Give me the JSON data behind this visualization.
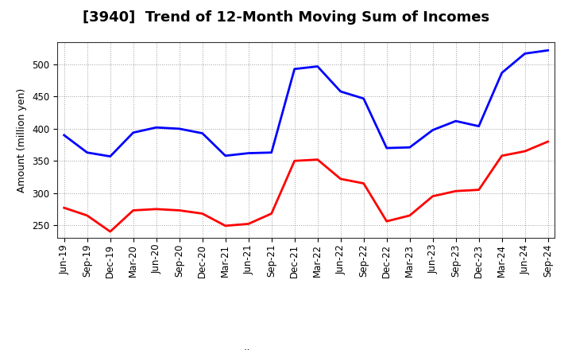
{
  "title": "[3940]  Trend of 12-Month Moving Sum of Incomes",
  "ylabel": "Amount (million yen)",
  "background_color": "#ffffff",
  "plot_bg_color": "#ffffff",
  "grid_color": "#888888",
  "x_labels": [
    "Jun-19",
    "Sep-19",
    "Dec-19",
    "Mar-20",
    "Jun-20",
    "Sep-20",
    "Dec-20",
    "Mar-21",
    "Jun-21",
    "Sep-21",
    "Dec-21",
    "Mar-22",
    "Jun-22",
    "Sep-22",
    "Dec-22",
    "Mar-23",
    "Jun-23",
    "Sep-23",
    "Dec-23",
    "Mar-24",
    "Jun-24",
    "Sep-24"
  ],
  "ordinary_income": [
    390,
    363,
    357,
    394,
    402,
    400,
    393,
    358,
    362,
    363,
    493,
    497,
    458,
    447,
    370,
    371,
    398,
    412,
    404,
    487,
    517,
    522
  ],
  "net_income": [
    277,
    265,
    240,
    273,
    275,
    273,
    268,
    249,
    252,
    268,
    350,
    352,
    322,
    315,
    256,
    265,
    295,
    303,
    305,
    358,
    365,
    380
  ],
  "ordinary_color": "#0000ff",
  "net_color": "#ff0000",
  "ylim_min": 230,
  "ylim_max": 535,
  "yticks": [
    250,
    300,
    350,
    400,
    450,
    500
  ],
  "line_width": 2.0,
  "title_fontsize": 13,
  "axis_fontsize": 9,
  "tick_fontsize": 8.5,
  "legend_fontsize": 9
}
